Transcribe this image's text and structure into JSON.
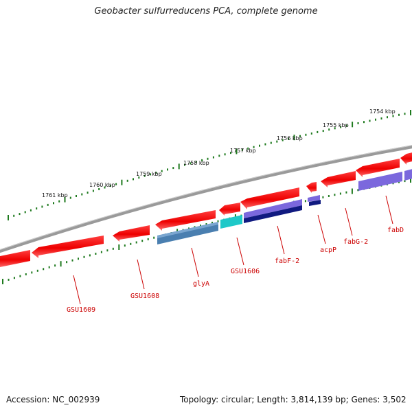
{
  "title": "Geobacter sulfurreducens PCA, complete genome",
  "footer": {
    "accession": "Accession: NC_002939",
    "summary": "Topology: circular; Length: 3,814,139 bp; Genes: 3,502"
  },
  "colors": {
    "backbone": "#808080",
    "gene_forward": "#ff1a1a",
    "ticks": "#1e7a1e",
    "label": "#cc0000",
    "glyA": "#4a7fb0",
    "GSU1606": "#20c8c8",
    "fabF-2": "#102080",
    "acpP": "#6a5acd",
    "fabD": "#7a6ad8"
  },
  "scale_labels": [
    "1754 kbp",
    "1755 kbp",
    "1756 kbp",
    "1757 kbp",
    "1758 kbp",
    "1759 kbp",
    "1760 kbp",
    "1761 kbp"
  ],
  "gene_labels": [
    "GSU1609",
    "GSU1608",
    "glyA",
    "GSU1606",
    "fabF-2",
    "acpP",
    "fabG-2",
    "fabD"
  ]
}
